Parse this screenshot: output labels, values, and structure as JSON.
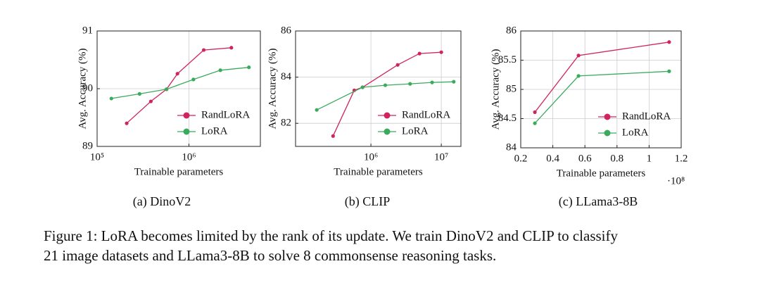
{
  "chart_data": [
    {
      "type": "line",
      "subcaption": "(a) DinoV2",
      "xlabel": "Trainable parameters",
      "ylabel": "Avg. Accuracy (%)",
      "xscale": "log",
      "xlim": [
        100000,
        6000000
      ],
      "xticks": [
        {
          "value": 100000,
          "label": "10⁵"
        },
        {
          "value": 1000000,
          "label": "10⁶"
        }
      ],
      "ylim": [
        89,
        91
      ],
      "yticks": [
        89,
        90,
        91
      ],
      "grid": true,
      "legend": "lower right",
      "series": [
        {
          "name": "RandLoRA",
          "color": "#d0245e",
          "x": [
            210000,
            385000,
            570000,
            750000,
            1450000,
            2900000
          ],
          "values": [
            89.4,
            89.78,
            89.99,
            90.26,
            90.67,
            90.71
          ]
        },
        {
          "name": "LoRA",
          "color": "#3aaa5c",
          "x": [
            143000,
            290000,
            570000,
            1120000,
            2200000,
            4500000
          ],
          "values": [
            89.83,
            89.91,
            89.99,
            90.16,
            90.32,
            90.37
          ]
        }
      ]
    },
    {
      "type": "line",
      "subcaption": "(b) CLIP",
      "xlabel": "Trainable parameters",
      "ylabel": "Avg. Accuracy (%)",
      "xscale": "log",
      "xlim": [
        85000,
        19000000
      ],
      "xticks": [
        {
          "value": 1000000,
          "label": "10⁶"
        },
        {
          "value": 10000000,
          "label": "10⁷"
        }
      ],
      "ylim": [
        81,
        86
      ],
      "yticks": [
        82,
        84,
        86
      ],
      "grid": true,
      "legend": "lower right",
      "series": [
        {
          "name": "RandLoRA",
          "color": "#d0245e",
          "x": [
            290000,
            580000,
            760000,
            2400000,
            4900000,
            10000000
          ],
          "values": [
            81.45,
            83.43,
            83.56,
            84.53,
            85.02,
            85.08
          ]
        },
        {
          "name": "LoRA",
          "color": "#3aaa5c",
          "x": [
            170000,
            760000,
            1600000,
            3600000,
            7400000,
            15000000
          ],
          "values": [
            82.58,
            83.56,
            83.65,
            83.71,
            83.77,
            83.8
          ]
        }
      ]
    },
    {
      "type": "line",
      "subcaption": "(c) LLama3-8B",
      "xlabel": "Trainable parameters",
      "ylabel": "Avg. Accuracy (%)",
      "x_multiplier": "·10⁸",
      "xscale": "linear",
      "xlim": [
        0.2,
        1.2
      ],
      "xticks": [
        0.2,
        0.4,
        0.6,
        0.8,
        1,
        1.2
      ],
      "ylim": [
        84,
        86
      ],
      "yticks": [
        84,
        84.5,
        85,
        85.5,
        86
      ],
      "grid": true,
      "legend": "lower right",
      "series": [
        {
          "name": "RandLoRA",
          "color": "#d0245e",
          "x": [
            0.288,
            0.56,
            1.125
          ],
          "values": [
            84.61,
            85.58,
            85.81
          ]
        },
        {
          "name": "LoRA",
          "color": "#3aaa5c",
          "x": [
            0.288,
            0.56,
            1.125
          ],
          "values": [
            84.42,
            85.23,
            85.31
          ]
        }
      ]
    }
  ],
  "caption": [
    "Figure 1: LoRA becomes limited by the rank of its update. We train DinoV2 and CLIP to classify",
    "21 image datasets and LLama3-8B to solve 8 commonsense reasoning tasks."
  ]
}
